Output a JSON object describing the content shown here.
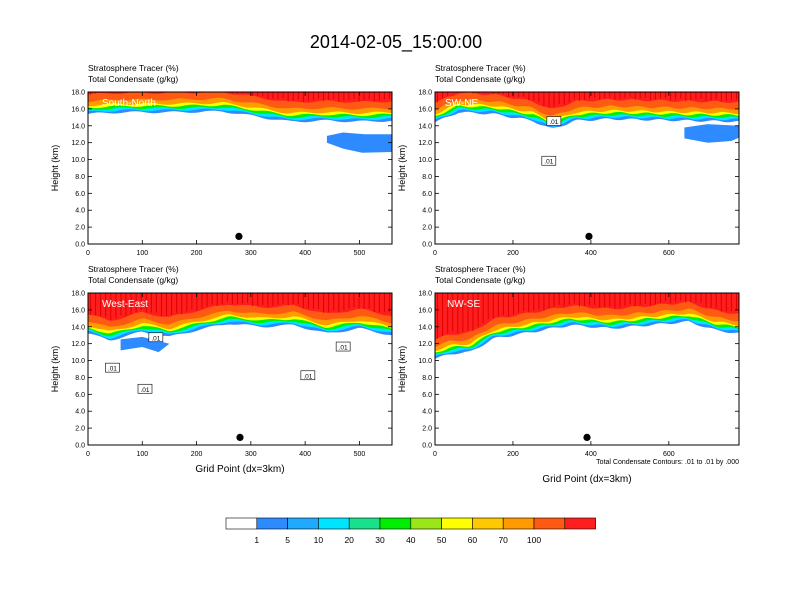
{
  "title": "2014-02-05_15:00:00",
  "panel_subtitle_1": "Stratosphere Tracer   (%)",
  "panel_subtitle_2": "Total Condensate   (g/kg)",
  "ylabel": "Height (km)",
  "xlabel": "Grid Point (dx=3km)",
  "contour_note": "Total Condensate Contours: .01 to .01 by .000",
  "colors": {
    "levels": [
      "#ffffff",
      "#2e8bff",
      "#1fa9ff",
      "#00e5ff",
      "#19e08a",
      "#00ee00",
      "#9ae619",
      "#ffff00",
      "#ffc800",
      "#ff9a00",
      "#ff5a14",
      "#ff1e1e"
    ],
    "contour_line": "#000000"
  },
  "chart_data": [
    {
      "type": "heatmap",
      "name": "South-North",
      "title": "South-North",
      "ylim": [
        0,
        18
      ],
      "xlim": [
        0,
        560
      ],
      "yticks": [
        0.0,
        2.0,
        4.0,
        6.0,
        8.0,
        10.0,
        12.0,
        14.0,
        16.0,
        18.0
      ],
      "xticks": [
        0,
        100,
        200,
        300,
        400,
        500
      ],
      "tracer_base_km": [
        [
          0,
          15.4
        ],
        [
          60,
          15.6
        ],
        [
          150,
          15.6
        ],
        [
          250,
          15.7
        ],
        [
          300,
          15.2
        ],
        [
          370,
          14.5
        ],
        [
          440,
          14.6
        ],
        [
          500,
          14.5
        ],
        [
          560,
          14.6
        ]
      ],
      "blue_patches": [
        [
          [
            440,
            12.0
          ],
          [
            470,
            11.3
          ],
          [
            505,
            10.8
          ],
          [
            560,
            10.9
          ],
          [
            560,
            13.0
          ],
          [
            510,
            13.0
          ],
          [
            470,
            13.2
          ],
          [
            440,
            12.8
          ]
        ]
      ],
      "contour_labels": [],
      "marker_x": 278
    },
    {
      "type": "heatmap",
      "name": "SW-NE",
      "title": "SW-NE",
      "ylim": [
        0,
        18
      ],
      "xlim": [
        0,
        780
      ],
      "yticks": [
        0.0,
        2.0,
        4.0,
        6.0,
        8.0,
        10.0,
        12.0,
        14.0,
        16.0,
        18.0
      ],
      "xticks": [
        0,
        200,
        400,
        600
      ],
      "tracer_base_km": [
        [
          0,
          14.4
        ],
        [
          60,
          15.6
        ],
        [
          150,
          15.4
        ],
        [
          250,
          14.6
        ],
        [
          300,
          13.6
        ],
        [
          360,
          14.6
        ],
        [
          450,
          14.8
        ],
        [
          560,
          14.7
        ],
        [
          650,
          14.6
        ],
        [
          780,
          14.5
        ]
      ],
      "blue_patches": [
        [
          [
            640,
            12.5
          ],
          [
            700,
            12.0
          ],
          [
            760,
            12.2
          ],
          [
            780,
            12.6
          ],
          [
            780,
            14.0
          ],
          [
            700,
            14.2
          ],
          [
            640,
            13.8
          ]
        ]
      ],
      "contour_labels": [
        {
          "x": 292,
          "y": 9.8,
          "text": ".01"
        },
        {
          "x": 305,
          "y": 14.5,
          "text": ".01"
        }
      ],
      "marker_x": 395
    },
    {
      "type": "heatmap",
      "name": "West-East",
      "title": "West-East",
      "ylim": [
        0,
        18
      ],
      "xlim": [
        0,
        560
      ],
      "yticks": [
        0.0,
        2.0,
        4.0,
        6.0,
        8.0,
        10.0,
        12.0,
        14.0,
        16.0,
        18.0
      ],
      "xticks": [
        0,
        100,
        200,
        300,
        400,
        500
      ],
      "tracer_base_km": [
        [
          0,
          13.2
        ],
        [
          40,
          12.4
        ],
        [
          100,
          13.4
        ],
        [
          150,
          12.8
        ],
        [
          200,
          13.6
        ],
        [
          260,
          14.4
        ],
        [
          320,
          14.0
        ],
        [
          380,
          14.2
        ],
        [
          440,
          13.2
        ],
        [
          500,
          13.8
        ],
        [
          560,
          13.0
        ]
      ],
      "blue_patches": [
        [
          [
            60,
            11.2
          ],
          [
            100,
            11.6
          ],
          [
            130,
            11.0
          ],
          [
            150,
            12.0
          ],
          [
            100,
            12.8
          ],
          [
            60,
            12.5
          ]
        ]
      ],
      "contour_labels": [
        {
          "x": 125,
          "y": 12.7,
          "text": ".01"
        },
        {
          "x": 45,
          "y": 9.1,
          "text": ".01"
        },
        {
          "x": 105,
          "y": 6.6,
          "text": ".01"
        },
        {
          "x": 405,
          "y": 8.2,
          "text": ".01"
        },
        {
          "x": 470,
          "y": 11.6,
          "text": ".01"
        }
      ],
      "marker_x": 280
    },
    {
      "type": "heatmap",
      "name": "NW-SE",
      "title": "NW-SE",
      "ylim": [
        0,
        18
      ],
      "xlim": [
        0,
        780
      ],
      "yticks": [
        0.0,
        2.0,
        4.0,
        6.0,
        8.0,
        10.0,
        12.0,
        14.0,
        16.0,
        18.0
      ],
      "xticks": [
        0,
        200,
        400,
        600
      ],
      "tracer_base_km": [
        [
          0,
          10.2
        ],
        [
          40,
          10.8
        ],
        [
          90,
          11.0
        ],
        [
          150,
          12.6
        ],
        [
          250,
          13.4
        ],
        [
          350,
          14.2
        ],
        [
          450,
          13.8
        ],
        [
          550,
          14.2
        ],
        [
          650,
          14.6
        ],
        [
          720,
          13.6
        ],
        [
          780,
          13.2
        ]
      ],
      "blue_patches": [],
      "contour_labels": [],
      "marker_x": 390
    }
  ],
  "colorbar": {
    "labels": [
      "1",
      "5",
      "10",
      "20",
      "30",
      "40",
      "50",
      "60",
      "70",
      "100"
    ]
  }
}
